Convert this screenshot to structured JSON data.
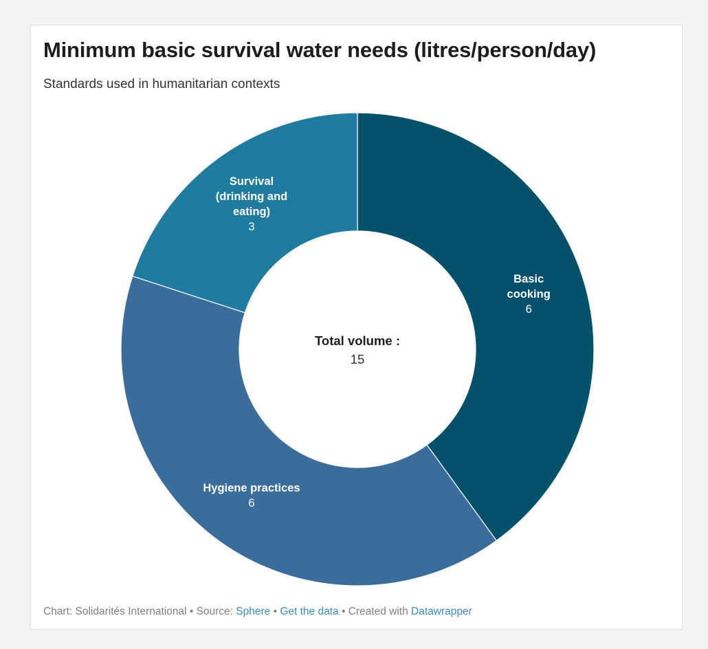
{
  "title": "Minimum basic survival water needs (litres/person/day)",
  "subtitle": "Standards used in humanitarian contexts",
  "center": {
    "label": "Total volume :",
    "value": "15"
  },
  "footer": {
    "chart_prefix": "Chart: Solidarités International",
    "source_prefix": "Source: ",
    "source_link": "Sphere",
    "get_data": "Get the data",
    "created_prefix": "Created with ",
    "created_link": "Datawrapper",
    "separator": " • "
  },
  "colors": {
    "basic_cooking": "#05506a",
    "hygiene": "#3a6d9c",
    "survival": "#1f7c9f",
    "link": "#3a8cc4"
  },
  "chart_data": {
    "type": "pie",
    "donut": true,
    "slices": [
      {
        "label_lines": [
          "Basic",
          "cooking"
        ],
        "value": 6,
        "color": "#05506a"
      },
      {
        "label_lines": [
          "Hygiene practices"
        ],
        "value": 6,
        "color": "#3a6d9c"
      },
      {
        "label_lines": [
          "Survival",
          "(drinking and",
          "eating)"
        ],
        "value": 3,
        "color": "#1f7c9f"
      }
    ],
    "total": 15
  }
}
